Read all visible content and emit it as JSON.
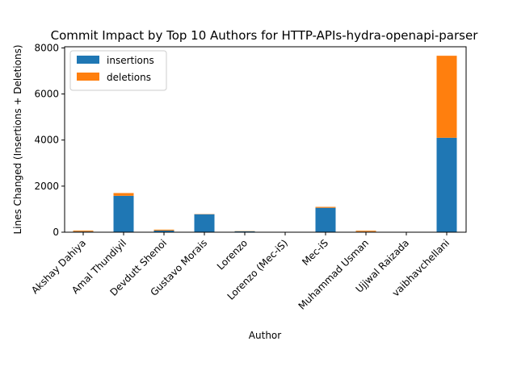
{
  "chart_data": {
    "type": "bar",
    "stacked": true,
    "title": "Commit Impact by Top 10 Authors for HTTP-APIs-hydra-openapi-parser",
    "xlabel": "Author",
    "ylabel": "Lines Changed (Insertions + Deletions)",
    "ylim": [
      0,
      8050
    ],
    "yticks": [
      0,
      2000,
      4000,
      6000,
      8000
    ],
    "categories": [
      "Akshay Dahiya",
      "Amal Thundiyil",
      "Devdutt Shenoi",
      "Gustavo Morais",
      "Lorenzo",
      "Lorenzo (Mec-iS)",
      "Mec-iS",
      "Muhammad Usman",
      "Ujjwal Raizada",
      "vaibhavchellani"
    ],
    "series": [
      {
        "name": "insertions",
        "color": "#1f77b4",
        "values": [
          30,
          1580,
          70,
          780,
          40,
          5,
          1060,
          25,
          5,
          4100
        ]
      },
      {
        "name": "deletions",
        "color": "#ff7f0e",
        "values": [
          40,
          120,
          40,
          10,
          10,
          0,
          40,
          40,
          0,
          3560
        ]
      }
    ],
    "legend": "top-left",
    "grid": false
  }
}
